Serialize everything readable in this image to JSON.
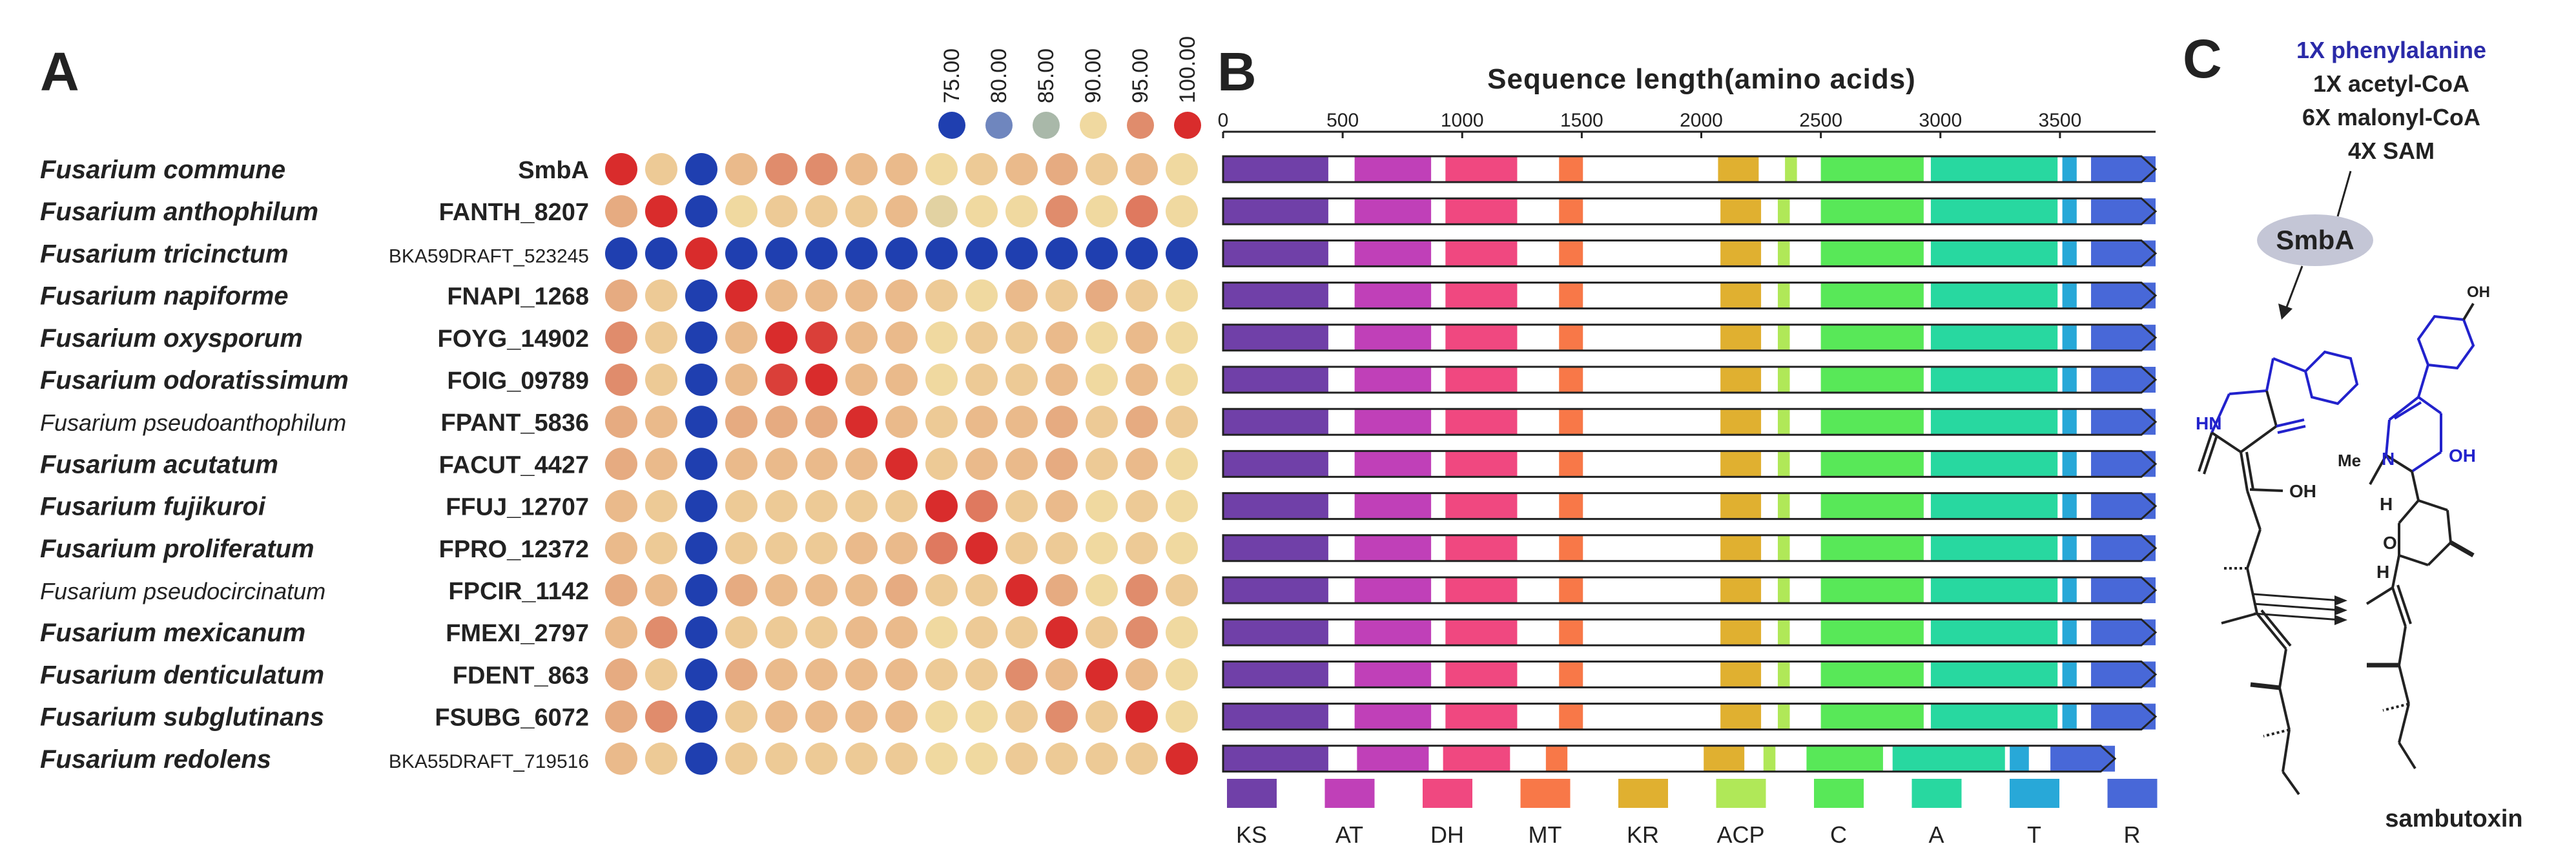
{
  "panels": {
    "a": "A",
    "b": "B",
    "c": "C"
  },
  "scale_labels": [
    "75.00",
    "80.00",
    "85.00",
    "90.00",
    "95.00",
    "100.00"
  ],
  "color_scale": [
    "#1f3fb0",
    "#6f86be",
    "#a9b8a9",
    "#f0d9a0",
    "#e08c6c",
    "#d92c2c"
  ],
  "chart_data": {
    "type": "heatmap",
    "species": [
      "Fusarium commune",
      "Fusarium anthophilum",
      "Fusarium tricinctum",
      "Fusarium napiforme",
      "Fusarium oxysporum",
      "Fusarium odoratissimum",
      "Fusarium pseudoanthophilum",
      "Fusarium acutatum",
      "Fusarium fujikuroi",
      "Fusarium proliferatum",
      "Fusarium pseudocircinatum",
      "Fusarium mexicanum",
      "Fusarium denticulatum",
      "Fusarium subglutinans",
      "Fusarium redolens"
    ],
    "genes": [
      "SmbA",
      "FANTH_8207",
      "BKA59DRAFT_523245",
      "FNAPI_1268",
      "FOYG_14902",
      "FOIG_09789",
      "FPANT_5836",
      "FACUT_4427",
      "FFUJ_12707",
      "FPRO_12372",
      "FPCIR_1142",
      "FMEXI_2797",
      "FDENT_863",
      "FSUBG_6072",
      "BKA55DRAFT_719516"
    ],
    "identity_range": [
      75,
      100
    ],
    "identity_matrix": [
      [
        100,
        91,
        75,
        92,
        95,
        95,
        92,
        92,
        90,
        91,
        92,
        93,
        91,
        92,
        90
      ],
      [
        93,
        100,
        75,
        90,
        91,
        91,
        91,
        92,
        89,
        90,
        90,
        95,
        90,
        96,
        90
      ],
      [
        75,
        75,
        100,
        75,
        75,
        75,
        75,
        75,
        75,
        75,
        75,
        75,
        75,
        75,
        75
      ],
      [
        93,
        91,
        75,
        100,
        92,
        92,
        92,
        92,
        91,
        90,
        92,
        91,
        93,
        91,
        90
      ],
      [
        95,
        91,
        75,
        92,
        100,
        99,
        92,
        92,
        90,
        91,
        91,
        92,
        90,
        92,
        90
      ],
      [
        95,
        91,
        75,
        92,
        99,
        100,
        92,
        92,
        90,
        91,
        91,
        92,
        90,
        92,
        90
      ],
      [
        93,
        92,
        75,
        93,
        93,
        93,
        100,
        92,
        91,
        92,
        92,
        93,
        91,
        93,
        91
      ],
      [
        93,
        92,
        75,
        92,
        92,
        92,
        92,
        100,
        91,
        92,
        92,
        93,
        91,
        92,
        90
      ],
      [
        92,
        91,
        75,
        91,
        91,
        91,
        91,
        91,
        100,
        96,
        91,
        92,
        90,
        91,
        90
      ],
      [
        92,
        91,
        75,
        91,
        91,
        91,
        92,
        92,
        96,
        100,
        91,
        91,
        90,
        91,
        90
      ],
      [
        93,
        92,
        75,
        93,
        92,
        92,
        92,
        93,
        91,
        91,
        100,
        93,
        90,
        95,
        91
      ],
      [
        92,
        95,
        75,
        91,
        91,
        91,
        92,
        92,
        90,
        91,
        91,
        100,
        91,
        95,
        90
      ],
      [
        93,
        91,
        75,
        93,
        92,
        92,
        92,
        92,
        91,
        91,
        95,
        92,
        100,
        92,
        90
      ],
      [
        93,
        95,
        75,
        91,
        92,
        92,
        92,
        92,
        90,
        90,
        91,
        95,
        91,
        100,
        90
      ],
      [
        92,
        91,
        75,
        91,
        91,
        91,
        91,
        91,
        90,
        90,
        91,
        91,
        91,
        91,
        100
      ]
    ],
    "bar_chart": {
      "title": "Sequence length(amino acids)",
      "ticks": [
        0,
        500,
        1000,
        1500,
        2000,
        2500,
        3000,
        3500
      ],
      "xlim": [
        0,
        3900
      ],
      "domains": [
        {
          "name": "KS",
          "color": "#7040a8"
        },
        {
          "name": "AT",
          "color": "#c040b8"
        },
        {
          "name": "DH",
          "color": "#f04880"
        },
        {
          "name": "MT",
          "color": "#f87848"
        },
        {
          "name": "KR",
          "color": "#e0b030"
        },
        {
          "name": "ACP",
          "color": "#b0e858"
        },
        {
          "name": "C",
          "color": "#58e858"
        },
        {
          "name": "A",
          "color": "#28d8a0"
        },
        {
          "name": "T",
          "color": "#28a8d8"
        },
        {
          "name": "R",
          "color": "#4868d8"
        }
      ],
      "proteins": [
        {
          "length": 3900,
          "domains": [
            [
              "KS",
              0,
              440
            ],
            [
              "AT",
              550,
              870
            ],
            [
              "DH",
              930,
              1230
            ],
            [
              "MT",
              1405,
              1505
            ],
            [
              "KR",
              2070,
              2240
            ],
            [
              "ACP",
              2350,
              2400
            ],
            [
              "C",
              2500,
              2930
            ],
            [
              "A",
              2960,
              3490
            ],
            [
              "T",
              3510,
              3570
            ],
            [
              "R",
              3630,
              3900
            ]
          ]
        },
        {
          "length": 3900,
          "domains": [
            [
              "KS",
              0,
              440
            ],
            [
              "AT",
              550,
              870
            ],
            [
              "DH",
              930,
              1230
            ],
            [
              "MT",
              1405,
              1505
            ],
            [
              "KR",
              2080,
              2250
            ],
            [
              "ACP",
              2320,
              2370
            ],
            [
              "C",
              2500,
              2930
            ],
            [
              "A",
              2960,
              3490
            ],
            [
              "T",
              3510,
              3570
            ],
            [
              "R",
              3630,
              3900
            ]
          ]
        },
        {
          "length": 3900,
          "domains": [
            [
              "KS",
              0,
              440
            ],
            [
              "AT",
              550,
              870
            ],
            [
              "DH",
              930,
              1230
            ],
            [
              "MT",
              1405,
              1505
            ],
            [
              "KR",
              2080,
              2250
            ],
            [
              "ACP",
              2320,
              2370
            ],
            [
              "C",
              2500,
              2930
            ],
            [
              "A",
              2960,
              3490
            ],
            [
              "T",
              3510,
              3570
            ],
            [
              "R",
              3630,
              3900
            ]
          ]
        },
        {
          "length": 3900,
          "domains": [
            [
              "KS",
              0,
              440
            ],
            [
              "AT",
              550,
              870
            ],
            [
              "DH",
              930,
              1230
            ],
            [
              "MT",
              1405,
              1505
            ],
            [
              "KR",
              2080,
              2250
            ],
            [
              "ACP",
              2320,
              2370
            ],
            [
              "C",
              2500,
              2930
            ],
            [
              "A",
              2960,
              3490
            ],
            [
              "T",
              3510,
              3570
            ],
            [
              "R",
              3630,
              3900
            ]
          ]
        },
        {
          "length": 3900,
          "domains": [
            [
              "KS",
              0,
              440
            ],
            [
              "AT",
              550,
              870
            ],
            [
              "DH",
              930,
              1230
            ],
            [
              "MT",
              1405,
              1505
            ],
            [
              "KR",
              2080,
              2250
            ],
            [
              "ACP",
              2320,
              2370
            ],
            [
              "C",
              2500,
              2930
            ],
            [
              "A",
              2960,
              3490
            ],
            [
              "T",
              3510,
              3570
            ],
            [
              "R",
              3630,
              3900
            ]
          ]
        },
        {
          "length": 3900,
          "domains": [
            [
              "KS",
              0,
              440
            ],
            [
              "AT",
              550,
              870
            ],
            [
              "DH",
              930,
              1230
            ],
            [
              "MT",
              1405,
              1505
            ],
            [
              "KR",
              2080,
              2250
            ],
            [
              "ACP",
              2320,
              2370
            ],
            [
              "C",
              2500,
              2930
            ],
            [
              "A",
              2960,
              3490
            ],
            [
              "T",
              3510,
              3570
            ],
            [
              "R",
              3630,
              3900
            ]
          ]
        },
        {
          "length": 3900,
          "domains": [
            [
              "KS",
              0,
              440
            ],
            [
              "AT",
              550,
              870
            ],
            [
              "DH",
              930,
              1230
            ],
            [
              "MT",
              1405,
              1505
            ],
            [
              "KR",
              2080,
              2250
            ],
            [
              "ACP",
              2320,
              2370
            ],
            [
              "C",
              2500,
              2930
            ],
            [
              "A",
              2960,
              3490
            ],
            [
              "T",
              3510,
              3570
            ],
            [
              "R",
              3630,
              3900
            ]
          ]
        },
        {
          "length": 3900,
          "domains": [
            [
              "KS",
              0,
              440
            ],
            [
              "AT",
              550,
              870
            ],
            [
              "DH",
              930,
              1230
            ],
            [
              "MT",
              1405,
              1505
            ],
            [
              "KR",
              2080,
              2250
            ],
            [
              "ACP",
              2320,
              2370
            ],
            [
              "C",
              2500,
              2930
            ],
            [
              "A",
              2960,
              3490
            ],
            [
              "T",
              3510,
              3570
            ],
            [
              "R",
              3630,
              3900
            ]
          ]
        },
        {
          "length": 3900,
          "domains": [
            [
              "KS",
              0,
              440
            ],
            [
              "AT",
              550,
              870
            ],
            [
              "DH",
              930,
              1230
            ],
            [
              "MT",
              1405,
              1505
            ],
            [
              "KR",
              2080,
              2250
            ],
            [
              "ACP",
              2320,
              2370
            ],
            [
              "C",
              2500,
              2930
            ],
            [
              "A",
              2960,
              3490
            ],
            [
              "T",
              3510,
              3570
            ],
            [
              "R",
              3630,
              3900
            ]
          ]
        },
        {
          "length": 3900,
          "domains": [
            [
              "KS",
              0,
              440
            ],
            [
              "AT",
              550,
              870
            ],
            [
              "DH",
              930,
              1230
            ],
            [
              "MT",
              1405,
              1505
            ],
            [
              "KR",
              2080,
              2250
            ],
            [
              "ACP",
              2320,
              2370
            ],
            [
              "C",
              2500,
              2930
            ],
            [
              "A",
              2960,
              3490
            ],
            [
              "T",
              3510,
              3570
            ],
            [
              "R",
              3630,
              3900
            ]
          ]
        },
        {
          "length": 3900,
          "domains": [
            [
              "KS",
              0,
              440
            ],
            [
              "AT",
              550,
              870
            ],
            [
              "DH",
              930,
              1230
            ],
            [
              "MT",
              1405,
              1505
            ],
            [
              "KR",
              2080,
              2250
            ],
            [
              "ACP",
              2320,
              2370
            ],
            [
              "C",
              2500,
              2930
            ],
            [
              "A",
              2960,
              3490
            ],
            [
              "T",
              3510,
              3570
            ],
            [
              "R",
              3630,
              3900
            ]
          ]
        },
        {
          "length": 3900,
          "domains": [
            [
              "KS",
              0,
              440
            ],
            [
              "AT",
              550,
              870
            ],
            [
              "DH",
              930,
              1230
            ],
            [
              "MT",
              1405,
              1505
            ],
            [
              "KR",
              2080,
              2250
            ],
            [
              "ACP",
              2320,
              2370
            ],
            [
              "C",
              2500,
              2930
            ],
            [
              "A",
              2960,
              3490
            ],
            [
              "T",
              3510,
              3570
            ],
            [
              "R",
              3630,
              3900
            ]
          ]
        },
        {
          "length": 3900,
          "domains": [
            [
              "KS",
              0,
              440
            ],
            [
              "AT",
              550,
              870
            ],
            [
              "DH",
              930,
              1230
            ],
            [
              "MT",
              1405,
              1505
            ],
            [
              "KR",
              2080,
              2250
            ],
            [
              "ACP",
              2320,
              2370
            ],
            [
              "C",
              2500,
              2930
            ],
            [
              "A",
              2960,
              3490
            ],
            [
              "T",
              3510,
              3570
            ],
            [
              "R",
              3630,
              3900
            ]
          ]
        },
        {
          "length": 3900,
          "domains": [
            [
              "KS",
              0,
              440
            ],
            [
              "AT",
              550,
              870
            ],
            [
              "DH",
              930,
              1230
            ],
            [
              "MT",
              1405,
              1505
            ],
            [
              "KR",
              2080,
              2250
            ],
            [
              "ACP",
              2320,
              2370
            ],
            [
              "C",
              2500,
              2930
            ],
            [
              "A",
              2960,
              3490
            ],
            [
              "T",
              3510,
              3570
            ],
            [
              "R",
              3630,
              3900
            ]
          ]
        },
        {
          "length": 3730,
          "domains": [
            [
              "KS",
              0,
              440
            ],
            [
              "AT",
              560,
              860
            ],
            [
              "DH",
              920,
              1200
            ],
            [
              "MT",
              1350,
              1440
            ],
            [
              "KR",
              2010,
              2180
            ],
            [
              "ACP",
              2260,
              2310
            ],
            [
              "C",
              2440,
              2760
            ],
            [
              "A",
              2800,
              3270
            ],
            [
              "T",
              3290,
              3370
            ],
            [
              "R",
              3460,
              3730
            ]
          ]
        }
      ]
    }
  },
  "panel_c": {
    "substrates": [
      "1X phenylalanine",
      "1X acetyl-CoA",
      "6X malonyl-CoA",
      "4X SAM"
    ],
    "enzyme": "SmbA",
    "product": "sambutoxin",
    "atoms": {
      "hn": "HN",
      "oh": "OH",
      "n": "N",
      "me": "Me",
      "h": "H",
      "o": "O"
    }
  }
}
